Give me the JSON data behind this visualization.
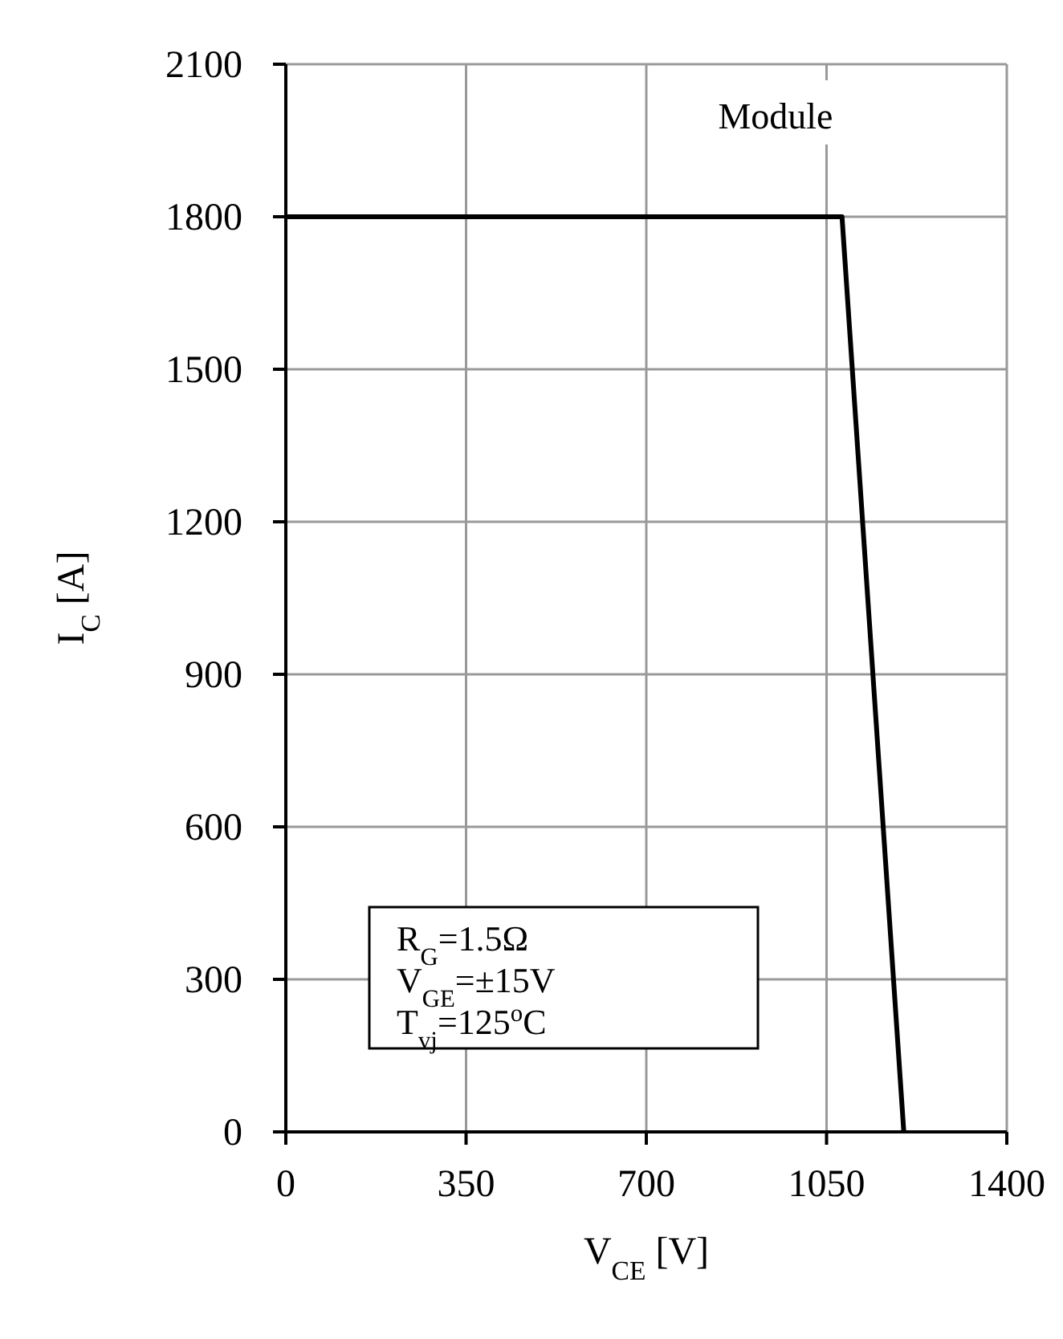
{
  "chart_data": {
    "type": "line",
    "xlabel": "V$_{CE}$ [V]",
    "ylabel": "I$_{C}$ [A]",
    "x": [
      0,
      1080,
      1200
    ],
    "series": [
      {
        "color": "#000000",
        "values": [
          1800,
          1800,
          0
        ]
      }
    ],
    "xlim": [
      0,
      1400
    ],
    "xticks": [
      0,
      350,
      700,
      1050,
      1400
    ],
    "ylim": [
      0,
      2100
    ],
    "yticks": [
      0,
      300,
      600,
      900,
      1200,
      1500,
      1800,
      2100
    ],
    "grid": true,
    "marker": "none",
    "line_style": "solid",
    "annotations": [
      "Module",
      "R$_{G}$=1.5Ω",
      "V$_{GE}$=±15V",
      "T$_{vj}$=125$^{o}$C"
    ]
  }
}
